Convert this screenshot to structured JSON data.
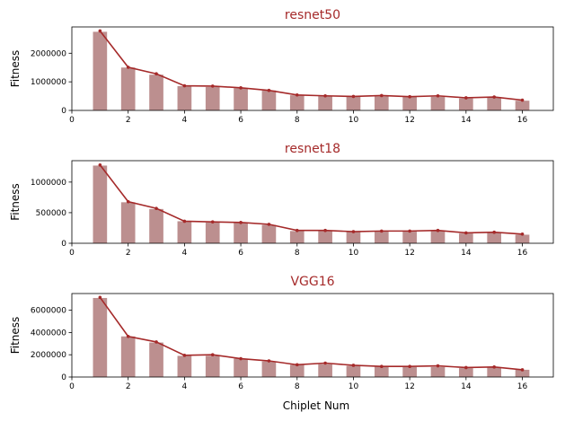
{
  "colors": {
    "bar": "#bc8f8f",
    "line": "#a52a2a",
    "title": "#a52a2a"
  },
  "xlabel": "Chiplet Num",
  "chart_data": [
    {
      "type": "bar",
      "overlay": "line",
      "title": "resnet50",
      "xlabel": "",
      "ylabel": "Fitness",
      "x": [
        1,
        2,
        3,
        4,
        5,
        6,
        7,
        8,
        9,
        10,
        11,
        12,
        13,
        14,
        15,
        16
      ],
      "bar_values": [
        2750000,
        1500000,
        1250000,
        850000,
        820000,
        780000,
        700000,
        530000,
        500000,
        480000,
        490000,
        470000,
        480000,
        420000,
        460000,
        340000
      ],
      "line_values": [
        2780000,
        1510000,
        1280000,
        860000,
        850000,
        790000,
        700000,
        540000,
        510000,
        490000,
        520000,
        480000,
        510000,
        440000,
        470000,
        360000
      ],
      "xlim": [
        0,
        17.1
      ],
      "ylim": [
        0,
        2920000
      ],
      "xticks": [
        0,
        2,
        4,
        6,
        8,
        10,
        12,
        14,
        16
      ],
      "yticks": [
        0,
        1000000,
        2000000
      ],
      "grid": false
    },
    {
      "type": "bar",
      "overlay": "line",
      "title": "resnet18",
      "xlabel": "",
      "ylabel": "Fitness",
      "x": [
        1,
        2,
        3,
        4,
        5,
        6,
        7,
        8,
        9,
        10,
        11,
        12,
        13,
        14,
        15,
        16
      ],
      "bar_values": [
        1270000,
        670000,
        560000,
        360000,
        340000,
        330000,
        300000,
        200000,
        200000,
        190000,
        190000,
        190000,
        200000,
        160000,
        170000,
        140000
      ],
      "line_values": [
        1280000,
        680000,
        570000,
        360000,
        350000,
        340000,
        310000,
        210000,
        210000,
        190000,
        200000,
        200000,
        210000,
        170000,
        180000,
        150000
      ],
      "xlim": [
        0,
        17.1
      ],
      "ylim": [
        0,
        1350000
      ],
      "xticks": [
        0,
        2,
        4,
        6,
        8,
        10,
        12,
        14,
        16
      ],
      "yticks": [
        0,
        500000,
        1000000
      ],
      "grid": false
    },
    {
      "type": "bar",
      "overlay": "line",
      "title": "VGG16",
      "xlabel": "Chiplet Num",
      "ylabel": "Fitness",
      "x": [
        1,
        2,
        3,
        4,
        5,
        6,
        7,
        8,
        9,
        10,
        11,
        12,
        13,
        14,
        15,
        16
      ],
      "bar_values": [
        7100000,
        3650000,
        3100000,
        1900000,
        1900000,
        1650000,
        1400000,
        1100000,
        1150000,
        1000000,
        950000,
        900000,
        900000,
        800000,
        850000,
        650000
      ],
      "line_values": [
        7150000,
        3650000,
        3150000,
        1950000,
        2000000,
        1650000,
        1450000,
        1100000,
        1250000,
        1050000,
        950000,
        950000,
        1000000,
        850000,
        900000,
        650000
      ],
      "xlim": [
        0,
        17.1
      ],
      "ylim": [
        0,
        7500000
      ],
      "xticks": [
        0,
        2,
        4,
        6,
        8,
        10,
        12,
        14,
        16
      ],
      "yticks": [
        0,
        2000000,
        4000000,
        6000000
      ],
      "grid": false
    }
  ]
}
